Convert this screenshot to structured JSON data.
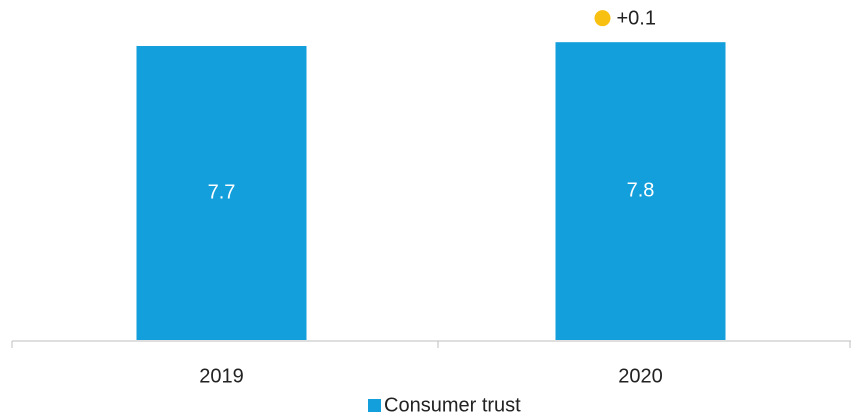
{
  "chart_data": {
    "type": "bar",
    "categories": [
      "2019",
      "2020"
    ],
    "series": [
      {
        "name": "Consumer trust",
        "color": "#139fdb",
        "values": [
          7.7,
          7.8
        ]
      }
    ],
    "ylim": [
      0,
      8.8
    ],
    "annotation": {
      "label": "+0.1",
      "color": "#f8c010"
    },
    "legend": "bottom"
  }
}
